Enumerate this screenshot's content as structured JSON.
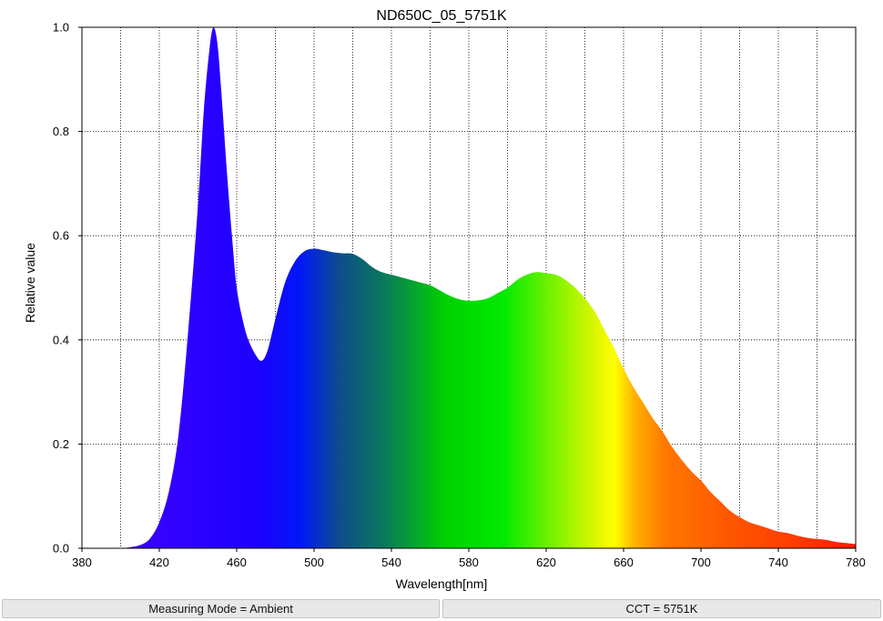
{
  "chart_data": {
    "type": "area",
    "title": "ND650C_05_5751K",
    "xlabel": "Wavelength[nm]",
    "ylabel": "Relative value",
    "xlim": [
      380,
      780
    ],
    "ylim": [
      0,
      1.0
    ],
    "x_ticks": [
      "380",
      "420",
      "460",
      "500",
      "540",
      "580",
      "620",
      "660",
      "700",
      "740",
      "780"
    ],
    "y_ticks": [
      "0.0",
      "0.2",
      "0.4",
      "0.6",
      "0.8",
      "1.0"
    ],
    "grid": true,
    "grid_style": "dotted",
    "fill": "visible-spectrum gradient",
    "x": [
      400,
      405,
      410,
      415,
      420,
      425,
      430,
      435,
      440,
      443,
      446,
      448,
      450,
      452,
      455,
      458,
      460,
      463,
      466,
      470,
      473,
      476,
      480,
      485,
      490,
      495,
      500,
      505,
      510,
      515,
      520,
      525,
      530,
      535,
      540,
      545,
      550,
      555,
      560,
      565,
      570,
      575,
      580,
      585,
      590,
      595,
      600,
      605,
      610,
      615,
      620,
      625,
      630,
      635,
      640,
      645,
      650,
      655,
      660,
      665,
      670,
      675,
      680,
      685,
      690,
      695,
      700,
      705,
      710,
      715,
      720,
      725,
      730,
      735,
      740,
      745,
      750,
      755,
      760,
      765,
      770,
      775,
      780
    ],
    "values": [
      0.0,
      0.002,
      0.006,
      0.018,
      0.05,
      0.11,
      0.22,
      0.42,
      0.66,
      0.84,
      0.96,
      1.0,
      0.97,
      0.88,
      0.72,
      0.58,
      0.5,
      0.44,
      0.4,
      0.37,
      0.36,
      0.38,
      0.44,
      0.51,
      0.55,
      0.57,
      0.575,
      0.572,
      0.568,
      0.566,
      0.565,
      0.555,
      0.54,
      0.53,
      0.525,
      0.52,
      0.515,
      0.51,
      0.505,
      0.495,
      0.485,
      0.478,
      0.475,
      0.476,
      0.48,
      0.49,
      0.5,
      0.515,
      0.525,
      0.53,
      0.528,
      0.525,
      0.515,
      0.5,
      0.48,
      0.455,
      0.42,
      0.385,
      0.345,
      0.31,
      0.28,
      0.25,
      0.225,
      0.195,
      0.17,
      0.148,
      0.13,
      0.108,
      0.09,
      0.072,
      0.06,
      0.05,
      0.044,
      0.038,
      0.032,
      0.029,
      0.024,
      0.02,
      0.018,
      0.016,
      0.012,
      0.01,
      0.008
    ]
  },
  "status_bar": {
    "left": "Measuring Mode = Ambient",
    "right": "CCT = 5751K"
  }
}
